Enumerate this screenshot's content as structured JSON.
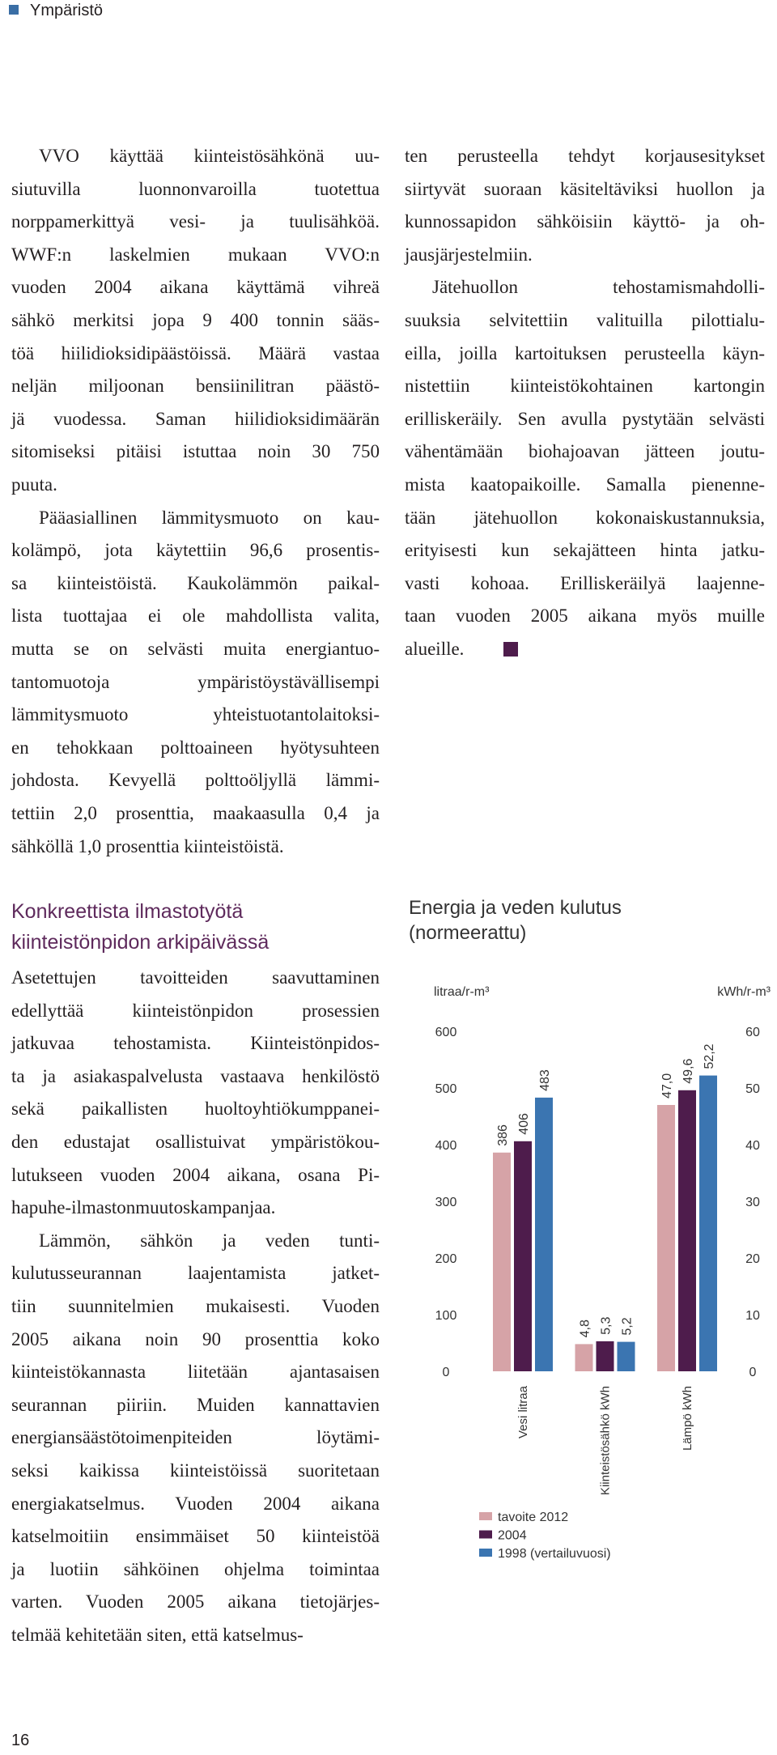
{
  "header": {
    "section": "Ympäristö"
  },
  "text": {
    "left_top": [
      [
        "VVO käyttää kiinteistösähkönä uu-",
        "siutuvilla luonnonvaroilla tuotettua",
        "norppamerkittyä vesi- ja tuulisähköä.",
        "WWF:n laskelmien mukaan VVO:n",
        "vuoden 2004 aikana käyttämä vihreä",
        "sähkö merkitsi jopa 9 400 tonnin sääs-",
        "töä hiilidioksidipäästöissä. Määrä vastaa",
        "neljän miljoonan bensiinilitran päästö-",
        "jä vuodessa. Saman hiilidioksidimäärän",
        "sitomiseksi pitäisi istuttaa noin 30 750",
        "puuta."
      ],
      [
        "Pääasiallinen lämmitysmuoto on kau-",
        "kolämpö, jota käytettiin 96,6 prosentis-",
        "sa kiinteistöistä. Kaukolämmön paikal-",
        "lista tuottajaa ei ole mahdollista valita,",
        "mutta se on selvästi muita energiantuo-",
        "tantomuotoja ympäristöystävällisempi",
        "lämmitysmuoto yhteistuotantolaitoksi-",
        "en tehokkaan polttoaineen hyötysuhteen",
        "johdosta. Kevyellä polttoöljyllä lämmi-",
        "tettiin 2,0 prosenttia, maakaasulla 0,4 ja",
        "sähköllä 1,0 prosenttia kiinteistöistä."
      ]
    ],
    "right_top": [
      [
        "ten perusteella tehdyt korjausesitykset",
        "siirtyvät suoraan käsiteltäviksi huollon ja",
        "kunnossapidon sähköisiin käyttö- ja oh-",
        "jausjärjestelmiin."
      ],
      [
        "Jätehuollon tehostamismahdolli-",
        "suuksia selvitettiin valituilla pilottialu-",
        "eilla, joilla kartoituksen perusteella käyn-",
        "nistettiin kiinteistökohtainen kartongin",
        "erilliskeräily. Sen avulla pystytään selvästi",
        "vähentämään biohajoavan jätteen joutu-",
        "mista kaatopaikoille. Samalla pienenne-",
        "tään jätehuollon kokonaiskustannuksia,",
        "erityisesti kun sekajätteen hinta jatku-",
        "vasti kohoaa. Erilliskeräilyä laajenne-",
        "taan vuoden 2005 aikana myös muille",
        "alueille."
      ]
    ],
    "heading": [
      "Konkreettista ilmastotyötä",
      "kiinteistönpidon arkipäivässä"
    ],
    "left_bottom": [
      [
        "Asetettujen tavoitteiden saavuttaminen",
        "edellyttää kiinteistönpidon prosessien",
        "jatkuvaa tehostamista. Kiinteistönpidos-",
        "ta ja asiakaspalvelusta vastaava henkilöstö",
        "sekä paikallisten huoltoyhtiökumppanei-",
        "den edustajat osallistuivat ympäristökou-",
        "lutukseen vuoden 2004 aikana, osana Pi-",
        "hapuhe-ilmastonmuutoskampanjaa."
      ],
      [
        "Lämmön, sähkön ja veden tunti-",
        "kulutusseurannan laajentamista jatket-",
        "tiin suunnitelmien mukaisesti. Vuoden",
        "2005 aikana noin 90 prosenttia koko",
        "kiinteistökannasta liitetään ajantasaisen",
        "seurannan piiriin. Muiden kannattavien",
        "energiansäästötoimenpiteiden löytämi-",
        "seksi kaikissa kiinteistöissä suoritetaan",
        "energiakatselmus. Vuoden 2004 aikana",
        "katselmoitiin ensimmäiset 50 kiinteistöä",
        "ja luotiin sähköinen ohjelma toimintaa",
        "varten. Vuoden 2005 aikana tietojärjes-",
        "telmää kehitetään siten, että katselmus-"
      ]
    ]
  },
  "chart_data": {
    "type": "bar",
    "title": "Energia ja veden kulutus (normeerattu)",
    "ylabel": "litraa/r-m³",
    "y2label": "kWh/r-m³",
    "categories": [
      "Vesi litraa",
      "Kiinteistösähkö kWh",
      "Lämpö kWh"
    ],
    "category_axis": [
      "y",
      "y2",
      "y2"
    ],
    "series": [
      {
        "name": "tavoite 2012",
        "color": "#d6a3a7",
        "values": [
          386,
          4.8,
          47.0
        ],
        "value_labels": [
          "386",
          "4,8",
          "47,0"
        ]
      },
      {
        "name": "2004",
        "color": "#4e1c4c",
        "values": [
          406,
          5.3,
          49.6
        ],
        "value_labels": [
          "406",
          "5,3",
          "49,6"
        ]
      },
      {
        "name": "1998 (vertailuvuosi)",
        "color": "#3b75b1",
        "values": [
          483,
          5.2,
          52.2
        ],
        "value_labels": [
          "483",
          "5,2",
          "52,2"
        ]
      }
    ],
    "ylim": [
      0,
      600
    ],
    "yticks": [
      0,
      100,
      200,
      300,
      400,
      500,
      600
    ],
    "y2lim": [
      0,
      60
    ],
    "y2ticks": [
      0,
      10,
      20,
      30,
      40,
      50,
      60
    ],
    "grid": false
  },
  "footer": {
    "page": "16"
  }
}
